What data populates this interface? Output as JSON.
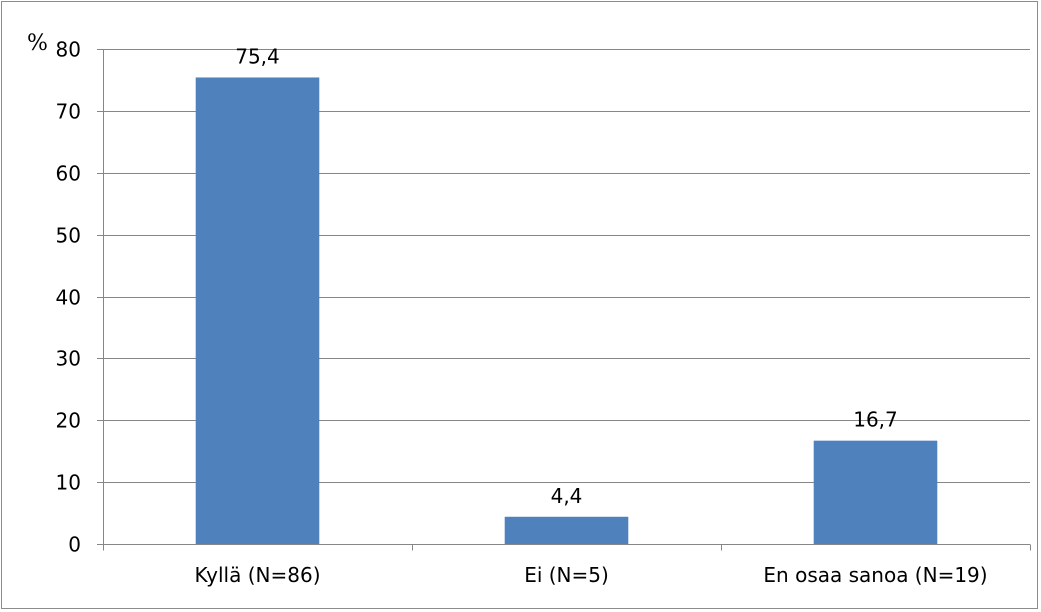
{
  "chart_data": {
    "type": "bar",
    "categories": [
      "Kyllä (N=86)",
      "Ei (N=5)",
      "En osaa sanoa (N=19)"
    ],
    "values": [
      75.4,
      4.4,
      16.7
    ],
    "value_labels": [
      "75,4",
      "4,4",
      "16,7"
    ],
    "ylabel": "%",
    "ylim": [
      0,
      80
    ],
    "yticks": [
      "0",
      "10",
      "20",
      "30",
      "40",
      "50",
      "60",
      "70",
      "80"
    ],
    "grid": true,
    "legend": "none",
    "bar_color": "#4f81bd",
    "grid_color": "#868686"
  }
}
